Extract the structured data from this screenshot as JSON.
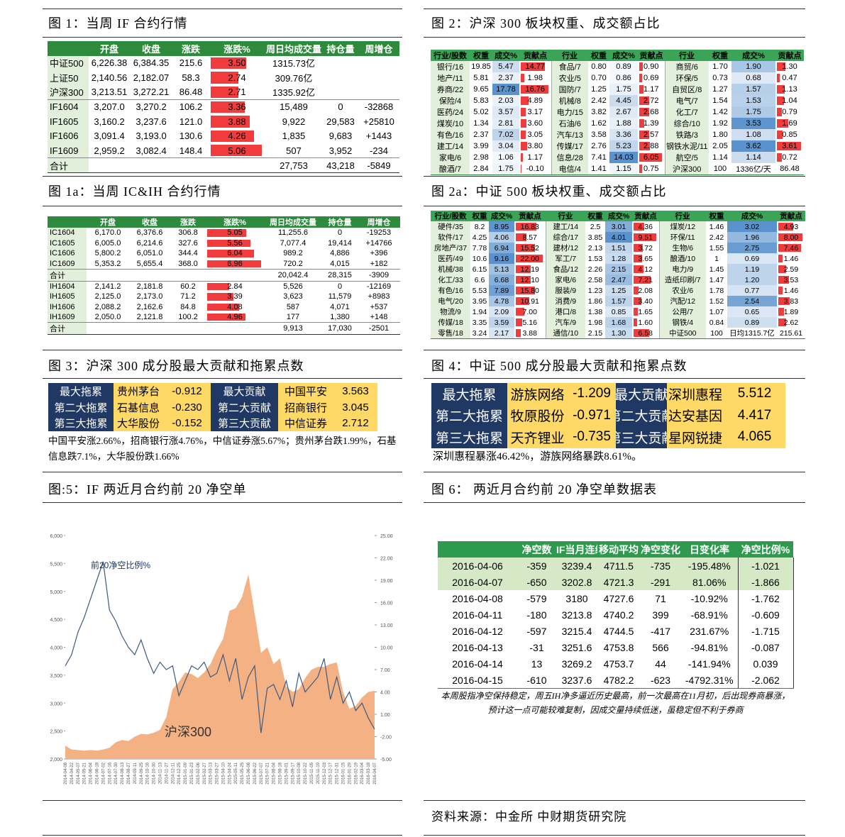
{
  "fig1": {
    "caption": "图 1：当周 IF 合约行情",
    "header": [
      "开盘",
      "收盘",
      "涨跌",
      "涨跌%",
      "周日均成交量",
      "持仓量",
      "周增仓"
    ],
    "rows": [
      [
        "中证500",
        "6,226.38",
        "6,384.35",
        "215.6",
        "3.50",
        "1315.73亿",
        null,
        null
      ],
      [
        "上证50",
        "2,140.56",
        "2,182.07",
        "58.3",
        "2.74",
        "309.76亿",
        null,
        null
      ],
      [
        "沪深300",
        "3,213.51",
        "3,272.21",
        "86.48",
        "2.71",
        "1335.92亿",
        null,
        null
      ],
      [
        "IF1604",
        "3,207.0",
        "3,270.2",
        "106.2",
        "3.36",
        "15,489",
        "0",
        "-32868"
      ],
      [
        "IF1605",
        "3,160.2",
        "3,237.6",
        "121.0",
        "3.88",
        "9,922",
        "29,583",
        "+25810"
      ],
      [
        "IF1606",
        "3,091.4",
        "3,193.0",
        "130.6",
        "4.26",
        "1,835",
        "9,683",
        "+1443"
      ],
      [
        "IF1609",
        "2,959.2",
        "3,082.4",
        "148.4",
        "5.06",
        "507",
        "3,952",
        "-234"
      ],
      [
        "合计",
        null,
        null,
        null,
        null,
        "27,753",
        "43,218",
        "-5849"
      ]
    ]
  },
  "fig1a": {
    "caption": "图 1a：当周 IC&IH 合约行情",
    "header": [
      "开盘",
      "收盘",
      "涨跌",
      "涨跌%",
      "周日均成交量",
      "持仓量",
      "周增仓"
    ],
    "rows": [
      [
        "IC1604",
        "6,170.0",
        "6,376.6",
        "306.8",
        "5.05",
        "11,255.6",
        "0",
        "-19253"
      ],
      [
        "IC1605",
        "6,005.0",
        "6,214.6",
        "327.6",
        "5.56",
        "7,077.4",
        "19,414",
        "+14766"
      ],
      [
        "IC1606",
        "5,800.2",
        "6,051.0",
        "344.4",
        "6.04",
        "989.2",
        "4,886",
        "+396"
      ],
      [
        "IC1609",
        "5,353.2",
        "5,655.4",
        "368.0",
        "6.96",
        "720.2",
        "4,015",
        "+182"
      ],
      [
        "合计",
        null,
        null,
        null,
        null,
        "20,042.4",
        "28,315",
        "-3909"
      ],
      [
        "IH1604",
        "2,141.2",
        "2,181.8",
        "60.2",
        "2.84",
        "5,526",
        "0",
        "-12169"
      ],
      [
        "IH1605",
        "2,125.0",
        "2,173.0",
        "71.2",
        "3.39",
        "3,623",
        "11,579",
        "+8983"
      ],
      [
        "IH1606",
        "2,088.2",
        "2,162.6",
        "84.8",
        "4.08",
        "587",
        "4,071",
        "+537"
      ],
      [
        "IH1609",
        "2,050.0",
        "2,121.8",
        "100.2",
        "4.96",
        "177",
        "1,380",
        "+148"
      ],
      [
        "合计",
        null,
        null,
        null,
        null,
        "9,913",
        "17,030",
        "-2501"
      ]
    ]
  },
  "fig2": {
    "caption": "图 2：沪深 300 板块权重、成交额占比",
    "header": [
      "行业/股数",
      "权重",
      "成交%",
      "贡献点",
      "行业",
      "权重",
      "成交%",
      "贡献点",
      "行业",
      "权重",
      "成交%",
      "贡献点"
    ],
    "rows": [
      [
        "银行/16",
        "19.85",
        "5.47",
        "14.77",
        "食品/7",
        "0.80",
        "0.89",
        "0.90",
        "商贸/6",
        "1.70",
        "1.90",
        "1.30"
      ],
      [
        "地产/11",
        "5.81",
        "2.37",
        "1.98",
        "农业/5",
        "0.70",
        "0.86",
        "0.69",
        "环保/5",
        "0.73",
        "0.68",
        "0.47"
      ],
      [
        "券商/22",
        "9.65",
        "17.78",
        "16.76",
        "国防/7",
        "1.25",
        "1.75",
        "1.17",
        "自贸区/8",
        "1.27",
        "1.57",
        "1.13"
      ],
      [
        "保险/4",
        "5.83",
        "2.03",
        "4.89",
        "机械/8",
        "2.42",
        "4.45",
        "2.72",
        "电气/7",
        "1.54",
        "1.53",
        "1.04"
      ],
      [
        "医药/24",
        "5.02",
        "3.57",
        "3.17",
        "电力/15",
        "3.82",
        "2.67",
        "2.68",
        "化工/7",
        "1.42",
        "1.75",
        "0.79"
      ],
      [
        "煤炭/10",
        "1.34",
        "2.81",
        "3.60",
        "石油/6",
        "1.62",
        "1.88",
        "1.39",
        "综合/10",
        "1.92",
        "3.53",
        "1.69"
      ],
      [
        "有色/16",
        "2.37",
        "7.02",
        "3.05",
        "汽车/13",
        "3.58",
        "3.36",
        "2.57",
        "铁路/3",
        "1.80",
        "1.08",
        "0.85"
      ],
      [
        "建工/14",
        "3.99",
        "3.04",
        "3.80",
        "传媒/17",
        "2.76",
        "5.23",
        "2.88",
        "钢铁水泥/11",
        "2.05",
        "3.62",
        "3.61"
      ],
      [
        "家电/6",
        "2.98",
        "1.06",
        "1.17",
        "信息/28",
        "7.41",
        "14.03",
        "6.05",
        "航空/5",
        "1.14",
        "1.14",
        "0.72"
      ],
      [
        "酿酒/7",
        "2.84",
        "1.75",
        "-0.10",
        "电信/4",
        "1.41",
        "1.15",
        "0.75",
        "沪深300",
        "100",
        "1336亿/天",
        "86.48"
      ]
    ]
  },
  "fig2a": {
    "caption": "图 2a：中证 500 板块权重、成交额占比",
    "header": [
      "行业/股数",
      "权重",
      "成交%",
      "贡献点",
      "行业",
      "权重",
      "成交%",
      "贡献点",
      "行业",
      "权重",
      "成交%",
      "贡献点"
    ],
    "rows": [
      [
        "硬件/35",
        "8.2",
        "8.95",
        "16.83",
        "建工/14",
        "2.5",
        "3.01",
        "4.36",
        "煤炭/12",
        "1.46",
        "3.02",
        "4.93"
      ],
      [
        "软件/17",
        "4.25",
        "4.06",
        "8.57",
        "综合/17",
        "3.85",
        "4.01",
        "9.51",
        "环保/11",
        "2.42",
        "1.96",
        "8.00"
      ],
      [
        "房地产/37",
        "7.78",
        "6.94",
        "15.52",
        "建材/12",
        "2.13",
        "1.51",
        "3.72",
        "生物/6",
        "1.55",
        "2.75",
        "7.46"
      ],
      [
        "医药/49",
        "10.6",
        "9.16",
        "22.00",
        "军工/7",
        "1.53",
        "1.28",
        "3.65",
        "酿酒/10",
        "1",
        "0.69",
        "1.46"
      ],
      [
        "机械/38",
        "6.15",
        "5.13",
        "12.19",
        "食品/12",
        "2.26",
        "2.15",
        "4.12",
        "电力/9",
        "1.45",
        "1.19",
        "2.59"
      ],
      [
        "化工/33",
        "6.6",
        "6.68",
        "12.10",
        "家电/6",
        "2.58",
        "2.47",
        "7.21",
        "造纸印刷/7",
        "1.47",
        "1.20",
        "3.53"
      ],
      [
        "有色/16",
        "5.53",
        "7.89",
        "15.80",
        "服装/9",
        "1.23",
        "1.25",
        "2.08",
        "农业/6",
        "1.78",
        "0.77",
        "1.46"
      ],
      [
        "电气/20",
        "3.95",
        "4.78",
        "10.91",
        "消费/9",
        "1.86",
        "1.57",
        "3.40",
        "汽配/12",
        "1.52",
        "2.54",
        "3.83"
      ],
      [
        "物流/9",
        "1.94",
        "2.09",
        "7.00",
        "港口/8",
        "1.38",
        "0.85",
        "1.65",
        "公用/7",
        "1.07",
        "0.65",
        "1.89"
      ],
      [
        "传媒/18",
        "3.35",
        "3.59",
        "5.16",
        "汽车/9",
        "1.98",
        "1.68",
        "1.60",
        "钢铁/4",
        "0.84",
        "0.89",
        "2.62"
      ],
      [
        "零售/18",
        "3.24",
        "2.17",
        "3.88",
        "通信/10",
        "2.15",
        "1.30",
        "6.58",
        "中证500",
        "100",
        "日均1315.7亿",
        "215.61"
      ]
    ]
  },
  "fig3": {
    "caption": "图 3：沪深 300 成分股最大贡献和拖累点数",
    "rows": [
      [
        "最大拖累",
        "贵州茅台",
        "-0.912",
        "最大贡献",
        "中国平安",
        "3.563"
      ],
      [
        "第二大拖累",
        "石基信息",
        "-0.230",
        "第二大贡献",
        "招商银行",
        "3.045"
      ],
      [
        "第三大拖累",
        "大华股份",
        "-0.152",
        "第三大贡献",
        "中信证券",
        "2.712"
      ]
    ],
    "note": "中国平安涨2.66%，招商银行涨4.76%，中信证券涨5.67%；贵州茅台跌1.99%，石基信息跌7.1%，大华股份跌1.66%"
  },
  "fig4": {
    "caption": "图 4：中证 500 成分股最大贡献和拖累点数",
    "rows": [
      [
        "最大拖累",
        "游族网络",
        "-1.209",
        "最大贡献",
        "深圳惠程",
        "5.512"
      ],
      [
        "第二大拖累",
        "牧原股份",
        "-0.971",
        "第二大贡献",
        "达安基因",
        "4.417"
      ],
      [
        "第三大拖累",
        "天齐锂业",
        "-0.735",
        "第三大贡献",
        "星网锐捷",
        "4.065"
      ]
    ],
    "note": "深圳惠程暴涨46.42%，游族网络暴跌8.61%。"
  },
  "fig5": {
    "caption": "图:5：IF 两近月合约前 20 净空单"
  },
  "chart_data": {
    "type": "line",
    "categories": [
      "2014-04-08",
      "2014-04-22",
      "2014-05-07",
      "2014-05-21",
      "2014-06-04",
      "2014-06-18",
      "2014-07-02",
      "2014-07-16",
      "2014-07-30",
      "2014-08-13",
      "2014-08-27",
      "2014-09-11",
      "2014-09-25",
      "2014-10-16",
      "2014-10-30",
      "2014-11-13",
      "2014-11-27",
      "2014-12-11",
      "2014-12-25",
      "2015-01-09",
      "2015-01-23",
      "2015-02-06",
      "2015-02-27",
      "2015-03-13",
      "2015-03-27",
      "2015-04-10",
      "2015-04-24",
      "2015-05-11",
      "2015-05-25",
      "2015-06-08",
      "2015-06-22",
      "2015-07-07",
      "2015-07-21",
      "2015-08-04",
      "2015-08-18",
      "2015-09-01",
      "2015-09-17",
      "2015-10-08",
      "2015-10-22",
      "2015-11-05",
      "2015-11-19",
      "2015-12-03",
      "2015-12-17",
      "2015-12-31",
      "2016-01-15",
      "2016-01-29",
      "2016-02-19",
      "2016-03-04",
      "2016-03-18",
      "2016-04-07"
    ],
    "series": [
      {
        "name": "沪深300",
        "color": "#f4b183",
        "fill": true,
        "values": [
          2240,
          2170,
          2160,
          2150,
          2160,
          2150,
          2170,
          2200,
          2300,
          2340,
          2320,
          2400,
          2450,
          2440,
          2470,
          2520,
          2750,
          3250,
          3380,
          3550,
          3520,
          3450,
          3550,
          3700,
          3950,
          4150,
          4650,
          4700,
          4900,
          5300,
          4600,
          3900,
          4000,
          3700,
          3800,
          3300,
          3200,
          3250,
          3450,
          3600,
          3650,
          3650,
          3700,
          3730,
          3200,
          2900,
          2950,
          3100,
          3200,
          3220
        ]
      },
      {
        "name": "前20净空比例%",
        "color": "#3d5a80",
        "axis": "y2",
        "values": [
          7.5,
          9.0,
          12.0,
          14.0,
          16.5,
          19.0,
          21.5,
          15.0,
          13.5,
          11.5,
          10.0,
          9.0,
          11.0,
          8.5,
          6.5,
          8.0,
          7.0,
          7.5,
          3.5,
          5.5,
          7.5,
          7.0,
          8.0,
          6.0,
          6.5,
          9.0,
          5.5,
          8.5,
          3.0,
          6.0,
          7.5,
          -1.5,
          4.5,
          5.0,
          3.0,
          5.5,
          2.0,
          6.5,
          4.0,
          5.0,
          6.0,
          8.5,
          3.0,
          6.0,
          2.5,
          4.0,
          1.5,
          2.5,
          0.5,
          -1.0
        ]
      }
    ],
    "ylim": [
      2000,
      6000
    ],
    "yticks": [
      {
        "value": 2000,
        "label": "2,000"
      },
      {
        "value": 2500,
        "label": "2,500"
      },
      {
        "value": 3000,
        "label": "3,000"
      },
      {
        "value": 3500,
        "label": "3,500"
      },
      {
        "value": 4000,
        "label": "4,000"
      },
      {
        "value": 4500,
        "label": "4,500"
      },
      {
        "value": 5000,
        "label": "5,000"
      },
      {
        "value": 5500,
        "label": "5,500"
      },
      {
        "value": 6000,
        "label": "6,000"
      }
    ],
    "y2lim": [
      -5,
      25
    ],
    "y2ticks": [
      {
        "value": -5,
        "label": "-5.00"
      },
      {
        "value": -2,
        "label": "-2.00"
      },
      {
        "value": 1,
        "label": "1.00"
      },
      {
        "value": 4,
        "label": "4.00"
      },
      {
        "value": 7,
        "label": "7.00"
      },
      {
        "value": 10,
        "label": "10.00"
      },
      {
        "value": 13,
        "label": "13.00"
      },
      {
        "value": 16,
        "label": "16.00"
      },
      {
        "value": 19,
        "label": "19.00"
      },
      {
        "value": 22,
        "label": "22.00"
      },
      {
        "value": 25,
        "label": "25.00"
      }
    ]
  },
  "fig6": {
    "caption": "图 6：  两近月合约前 20 净空单数据表",
    "header": [
      "净空数",
      "IF当月连续",
      "移动平均",
      "净空变化",
      "日变化率",
      "净空比例%"
    ],
    "rows": [
      [
        "2016-04-06",
        "-359",
        "3239.4",
        "4711.5",
        "-735",
        "-195.48%",
        "-1.021"
      ],
      [
        "2016-04-07",
        "-650",
        "3202.8",
        "4721.3",
        "-291",
        "81.06%",
        "-1.866"
      ],
      [
        "2016-04-08",
        "-579",
        "3180",
        "4727.6",
        "71",
        "-10.92%",
        "-1.762"
      ],
      [
        "2016-04-11",
        "-180",
        "3213.8",
        "4740.2",
        "399",
        "-68.91%",
        "-0.609"
      ],
      [
        "2016-04-12",
        "-597",
        "3215.4",
        "4744.5",
        "-417",
        "231.67%",
        "-1.715"
      ],
      [
        "2016-04-13",
        "-31",
        "3251.6",
        "4753.8",
        "566",
        "-94.81%",
        "-0.087"
      ],
      [
        "2016-04-14",
        "13",
        "3269.2",
        "4753.7",
        "44",
        "-141.94%",
        "0.039"
      ],
      [
        "2016-04-15",
        "-610",
        "3237.6",
        "4782.2",
        "-623",
        "-4792.31%",
        "-2.062"
      ]
    ],
    "note": "本周股指净空保持稳定，周五IH净多逼近历史最高，前一次最高在11月初，后出现券商暴涨，预计这一点可能较难复制，因成交量持续低迷，虽稳定但不利于券商"
  },
  "source": "资料来源：中金所  中财期货研究院"
}
